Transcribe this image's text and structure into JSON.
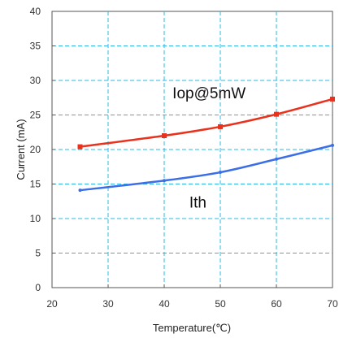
{
  "chart_data": {
    "type": "line",
    "xlabel": "Temperature(℃)",
    "ylabel": "Current (mA)",
    "xlim": [
      20,
      70
    ],
    "ylim": [
      0,
      40
    ],
    "xticks": [
      20,
      30,
      40,
      50,
      60,
      70
    ],
    "yticks": [
      0,
      5,
      10,
      15,
      20,
      25,
      30,
      35,
      40
    ],
    "grid": true,
    "series": [
      {
        "label": "Iop@5mW",
        "color": "#e8321e",
        "x": [
          25,
          40,
          50,
          60,
          70
        ],
        "y": [
          20.4,
          22.0,
          23.3,
          25.1,
          27.3
        ],
        "markers": true
      },
      {
        "label": "Ith",
        "color": "#3c6ee6",
        "x": [
          25,
          40,
          50,
          60,
          70
        ],
        "y": [
          14.1,
          15.5,
          16.7,
          18.6,
          20.6
        ],
        "markers": false
      }
    ],
    "annotations": [
      {
        "text": "Iop@5mW",
        "x": 48,
        "y": 27.4
      },
      {
        "text": "Ith",
        "x": 46,
        "y": 11.6
      }
    ]
  }
}
